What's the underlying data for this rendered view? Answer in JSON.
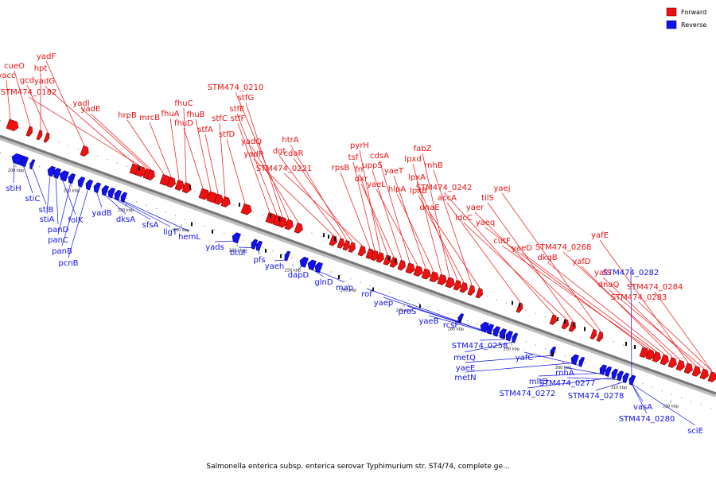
{
  "caption": "Salmonella enterica subsp. enterica serovar Typhimurium str. ST4/74, complete ge...",
  "legend": [
    {
      "label": "Forward",
      "color": "#ee1111"
    },
    {
      "label": "Reverse",
      "color": "#1111ee"
    }
  ],
  "ticks": [
    "200 kbp",
    "210 kbp",
    "220 kbp",
    "230 kbp",
    "240 kbp",
    "250 kbp",
    "260 kbp",
    "270 kbp",
    "280 kbp",
    "290 kbp",
    "300 kbp",
    "310 kbp",
    "320 kbp"
  ],
  "forward_genes": [
    "yacc",
    "cueO",
    "hpt",
    "gcd",
    "yadF",
    "yadG",
    "STM474_0182",
    "yadI",
    "yadE",
    "hrpB",
    "mrcB",
    "fhuA",
    "fhuC",
    "fhuD",
    "fhuB",
    "stfA",
    "stfC",
    "stfD",
    "stfF",
    "stfE",
    "stfG",
    "STM474_0210",
    "yadQ",
    "yadR",
    "dgt",
    "htrA",
    "cdaR",
    "STM474_0221",
    "rpsB",
    "tsf",
    "pyrH",
    "frr",
    "dxr",
    "uppS",
    "cdsA",
    "yaeL",
    "yaeT",
    "hlpA",
    "lpxd",
    "fabZ",
    "lpxA",
    "lpxB",
    "rnhB",
    "dnaE",
    "accA",
    "STM474_0242",
    "ldcC",
    "tilS",
    "yaer",
    "yaej",
    "yaeq",
    "cutF",
    "yaeD",
    "dkgB",
    "yafD",
    "STM474_0268",
    "yafE",
    "yafS",
    "dnaQ",
    "STM474_0284",
    "STM474_0283"
  ],
  "reverse_genes": [
    "stiH",
    "stiC",
    "stiB",
    "stiA",
    "panD",
    "folK",
    "panC",
    "panB",
    "pcnB",
    "yadB",
    "dksA",
    "sfsA",
    "ligT",
    "hemL",
    "yads",
    "btuF",
    "pfs",
    "yaeh",
    "dapD",
    "glnD",
    "map",
    "rof",
    "yaep",
    "proS",
    "yaeB",
    "rcsF",
    "STM474_0258",
    "metQ",
    "yaeE",
    "metN",
    "yafC",
    "mltD",
    "rnhA",
    "STM474_0272",
    "STM474_0277",
    "STM474_0278",
    "vasA",
    "STM474_0280",
    "sciE",
    "STM474_0282"
  ]
}
